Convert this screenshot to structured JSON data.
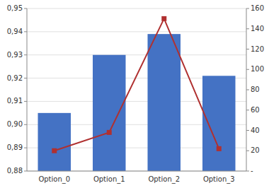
{
  "chart_data": {
    "type": "bar",
    "categories": [
      "Option_0",
      "Option_1",
      "Option_2",
      "Option_3"
    ],
    "series": [
      {
        "type": "bar",
        "color": "#4472C4",
        "values": [
          0.905,
          0.93,
          0.939,
          0.921
        ]
      },
      {
        "type": "line",
        "axis": "y2",
        "color": "#B03030",
        "marker": "square",
        "values": [
          20,
          38,
          150,
          22
        ]
      }
    ],
    "ylim": [
      0.88,
      0.95
    ],
    "yticks": [
      {
        "value": 0.88,
        "label": "0,88"
      },
      {
        "value": 0.89,
        "label": "0,89"
      },
      {
        "value": 0.9,
        "label": "0,90"
      },
      {
        "value": 0.91,
        "label": "0,91"
      },
      {
        "value": 0.92,
        "label": "0,92"
      },
      {
        "value": 0.93,
        "label": "0,93"
      },
      {
        "value": 0.94,
        "label": "0,94"
      },
      {
        "value": 0.95,
        "label": "0,95"
      }
    ],
    "y2lim": [
      0,
      160
    ],
    "y2ticks": [
      {
        "value": 0,
        "label": "-"
      },
      20,
      40,
      60,
      80,
      100,
      120,
      140,
      160
    ],
    "grid": true
  }
}
